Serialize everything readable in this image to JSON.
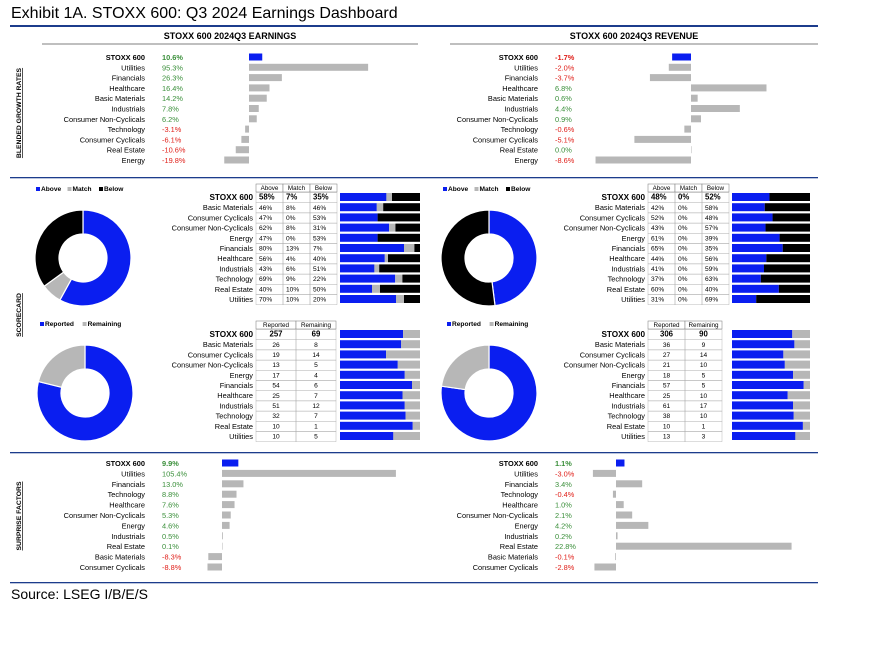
{
  "page": {
    "title": "Exhibit 1A.  STOXX 600: Q3 2024 Earnings Dashboard",
    "source": "Source: LSEG I/B/E/S"
  },
  "colors": {
    "blue": "#0a1ef0",
    "gray": "#b7b7b7",
    "black": "#000000",
    "positive_text": "#3a8f3a",
    "negative_text": "#e0201a",
    "rule": "#1c3c8c"
  },
  "section_labels": {
    "growth": "BLENDED GROWTH RATES",
    "scorecard": "SCORECARD",
    "surprise": "SURPRISE FACTORS"
  },
  "column_headers": {
    "earnings": "STOXX 600 2024Q3 EARNINGS",
    "revenue": "STOXX 600 2024Q3 REVENUE"
  },
  "chart_data": [
    {
      "id": "earnings-growth",
      "type": "bar",
      "orientation": "horizontal",
      "title": "STOXX 600 2024Q3 EARNINGS — Blended Growth Rates",
      "categories": [
        "STOXX 600",
        "Utilities",
        "Financials",
        "Healthcare",
        "Basic Materials",
        "Industrials",
        "Consumer Non-Cyclicals",
        "Technology",
        "Consumer Cyclicals",
        "Real Estate",
        "Energy"
      ],
      "labels": [
        "10.6%",
        "95.3%",
        "26.3%",
        "16.4%",
        "14.2%",
        "7.8%",
        "6.2%",
        "-3.1%",
        "-6.1%",
        "-10.6%",
        "-19.8%"
      ],
      "values": [
        10.6,
        95.3,
        26.3,
        16.4,
        14.2,
        7.8,
        6.2,
        -3.1,
        -6.1,
        -10.6,
        -19.8
      ]
    },
    {
      "id": "revenue-growth",
      "type": "bar",
      "orientation": "horizontal",
      "title": "STOXX 600 2024Q3 REVENUE — Blended Growth Rates",
      "categories": [
        "STOXX 600",
        "Utilities",
        "Financials",
        "Healthcare",
        "Basic Materials",
        "Industrials",
        "Consumer Non-Cyclicals",
        "Technology",
        "Consumer Cyclicals",
        "Real Estate",
        "Energy"
      ],
      "labels": [
        "-1.7%",
        "-2.0%",
        "-3.7%",
        "6.8%",
        "0.6%",
        "4.4%",
        "0.9%",
        "-0.6%",
        "-5.1%",
        "0.0%",
        "-8.6%"
      ],
      "values": [
        -1.7,
        -2.0,
        -3.7,
        6.8,
        0.6,
        4.4,
        0.9,
        -0.6,
        -5.1,
        0.0,
        -8.6
      ]
    },
    {
      "id": "earnings-scorecard",
      "type": "table",
      "title": "Earnings Scorecard: Above / Match / Below",
      "legend": [
        "Above",
        "Match",
        "Below"
      ],
      "headers": [
        "Above",
        "Match",
        "Below"
      ],
      "categories": [
        "STOXX 600",
        "Basic Materials",
        "Consumer Cyclicals",
        "Consumer Non-Cyclicals",
        "Energy",
        "Financials",
        "Healthcare",
        "Industrials",
        "Technology",
        "Real Estate",
        "Utilities"
      ],
      "labels": [
        [
          "58%",
          "7%",
          "35%"
        ],
        [
          "46%",
          "8%",
          "46%"
        ],
        [
          "47%",
          "0%",
          "53%"
        ],
        [
          "62%",
          "8%",
          "31%"
        ],
        [
          "47%",
          "0%",
          "53%"
        ],
        [
          "80%",
          "13%",
          "7%"
        ],
        [
          "56%",
          "4%",
          "40%"
        ],
        [
          "43%",
          "6%",
          "51%"
        ],
        [
          "69%",
          "9%",
          "22%"
        ],
        [
          "40%",
          "10%",
          "50%"
        ],
        [
          "70%",
          "10%",
          "20%"
        ]
      ],
      "values": [
        [
          58,
          7,
          35
        ],
        [
          46,
          8,
          46
        ],
        [
          47,
          0,
          53
        ],
        [
          62,
          8,
          31
        ],
        [
          47,
          0,
          53
        ],
        [
          80,
          13,
          7
        ],
        [
          56,
          4,
          40
        ],
        [
          43,
          6,
          51
        ],
        [
          69,
          9,
          22
        ],
        [
          40,
          10,
          50
        ],
        [
          70,
          10,
          20
        ]
      ],
      "donut": {
        "series": [
          "Above",
          "Match",
          "Below"
        ],
        "values": [
          58,
          7,
          35
        ]
      }
    },
    {
      "id": "revenue-scorecard",
      "type": "table",
      "title": "Revenue Scorecard: Above / Match / Below",
      "legend": [
        "Above",
        "Match",
        "Below"
      ],
      "headers": [
        "Above",
        "Match",
        "Below"
      ],
      "categories": [
        "STOXX 600",
        "Basic Materials",
        "Consumer Cyclicals",
        "Consumer Non-Cyclicals",
        "Energy",
        "Financials",
        "Healthcare",
        "Industrials",
        "Technology",
        "Real Estate",
        "Utilities"
      ],
      "labels": [
        [
          "48%",
          "0%",
          "52%"
        ],
        [
          "42%",
          "0%",
          "58%"
        ],
        [
          "52%",
          "0%",
          "48%"
        ],
        [
          "43%",
          "0%",
          "57%"
        ],
        [
          "61%",
          "0%",
          "39%"
        ],
        [
          "65%",
          "0%",
          "35%"
        ],
        [
          "44%",
          "0%",
          "56%"
        ],
        [
          "41%",
          "0%",
          "59%"
        ],
        [
          "37%",
          "0%",
          "63%"
        ],
        [
          "60%",
          "0%",
          "40%"
        ],
        [
          "31%",
          "0%",
          "69%"
        ]
      ],
      "values": [
        [
          48,
          0,
          52
        ],
        [
          42,
          0,
          58
        ],
        [
          52,
          0,
          48
        ],
        [
          43,
          0,
          57
        ],
        [
          61,
          0,
          39
        ],
        [
          65,
          0,
          35
        ],
        [
          44,
          0,
          56
        ],
        [
          41,
          0,
          59
        ],
        [
          37,
          0,
          63
        ],
        [
          60,
          0,
          40
        ],
        [
          31,
          0,
          69
        ]
      ],
      "donut": {
        "series": [
          "Above",
          "Match",
          "Below"
        ],
        "values": [
          48,
          0,
          52
        ]
      }
    },
    {
      "id": "earnings-reported",
      "type": "table",
      "title": "Earnings: Reported / Remaining",
      "legend": [
        "Reported",
        "Remaining"
      ],
      "headers": [
        "Reported",
        "Remaining"
      ],
      "categories": [
        "STOXX 600",
        "Basic Materials",
        "Consumer Cyclicals",
        "Consumer Non-Cyclicals",
        "Energy",
        "Financials",
        "Healthcare",
        "Industrials",
        "Technology",
        "Real Estate",
        "Utilities"
      ],
      "labels": [
        [
          "257",
          "69"
        ],
        [
          "26",
          "8"
        ],
        [
          "19",
          "14"
        ],
        [
          "13",
          "5"
        ],
        [
          "17",
          "4"
        ],
        [
          "54",
          "6"
        ],
        [
          "25",
          "7"
        ],
        [
          "51",
          "12"
        ],
        [
          "32",
          "7"
        ],
        [
          "10",
          "1"
        ],
        [
          "10",
          "5"
        ]
      ],
      "values": [
        [
          257,
          69
        ],
        [
          26,
          8
        ],
        [
          19,
          14
        ],
        [
          13,
          5
        ],
        [
          17,
          4
        ],
        [
          54,
          6
        ],
        [
          25,
          7
        ],
        [
          51,
          12
        ],
        [
          32,
          7
        ],
        [
          10,
          1
        ],
        [
          10,
          5
        ]
      ],
      "donut": {
        "series": [
          "Reported",
          "Remaining"
        ],
        "values": [
          257,
          69
        ]
      }
    },
    {
      "id": "revenue-reported",
      "type": "table",
      "title": "Revenue: Reported / Remaining",
      "legend": [
        "Reported",
        "Remaining"
      ],
      "headers": [
        "Reported",
        "Remaining"
      ],
      "categories": [
        "STOXX 600",
        "Basic Materials",
        "Consumer Cyclicals",
        "Consumer Non-Cyclicals",
        "Energy",
        "Financials",
        "Healthcare",
        "Industrials",
        "Technology",
        "Real Estate",
        "Utilities"
      ],
      "labels": [
        [
          "306",
          "90"
        ],
        [
          "36",
          "9"
        ],
        [
          "27",
          "14"
        ],
        [
          "21",
          "10"
        ],
        [
          "18",
          "5"
        ],
        [
          "57",
          "5"
        ],
        [
          "25",
          "10"
        ],
        [
          "61",
          "17"
        ],
        [
          "38",
          "10"
        ],
        [
          "10",
          "1"
        ],
        [
          "13",
          "3"
        ]
      ],
      "values": [
        [
          306,
          90
        ],
        [
          36,
          9
        ],
        [
          27,
          14
        ],
        [
          21,
          10
        ],
        [
          18,
          5
        ],
        [
          57,
          5
        ],
        [
          25,
          10
        ],
        [
          61,
          17
        ],
        [
          38,
          10
        ],
        [
          10,
          1
        ],
        [
          13,
          3
        ]
      ],
      "donut": {
        "series": [
          "Reported",
          "Remaining"
        ],
        "values": [
          306,
          90
        ]
      }
    },
    {
      "id": "earnings-surprise",
      "type": "bar",
      "orientation": "horizontal",
      "title": "STOXX 600 2024Q3 EARNINGS — Surprise Factors",
      "categories": [
        "STOXX 600",
        "Utilities",
        "Financials",
        "Technology",
        "Healthcare",
        "Consumer Non-Cyclicals",
        "Energy",
        "Industrials",
        "Real Estate",
        "Basic Materials",
        "Consumer Cyclicals"
      ],
      "labels": [
        "9.9%",
        "105.4%",
        "13.0%",
        "8.8%",
        "7.6%",
        "5.3%",
        "4.6%",
        "0.5%",
        "0.1%",
        "-8.3%",
        "-8.8%"
      ],
      "values": [
        9.9,
        105.4,
        13.0,
        8.8,
        7.6,
        5.3,
        4.6,
        0.5,
        0.1,
        -8.3,
        -8.8
      ]
    },
    {
      "id": "revenue-surprise",
      "type": "bar",
      "orientation": "horizontal",
      "title": "STOXX 600 2024Q3 REVENUE — Surprise Factors",
      "categories": [
        "STOXX 600",
        "Utilities",
        "Financials",
        "Technology",
        "Healthcare",
        "Consumer Non-Cyclicals",
        "Energy",
        "Industrials",
        "Real Estate",
        "Basic Materials",
        "Consumer Cyclicals"
      ],
      "labels": [
        "1.1%",
        "-3.0%",
        "3.4%",
        "-0.4%",
        "1.0%",
        "2.1%",
        "4.2%",
        "0.2%",
        "22.8%",
        "-0.1%",
        "-2.8%"
      ],
      "values": [
        1.1,
        -3.0,
        3.4,
        -0.4,
        1.0,
        2.1,
        4.2,
        0.2,
        22.8,
        -0.1,
        -2.8
      ]
    }
  ]
}
